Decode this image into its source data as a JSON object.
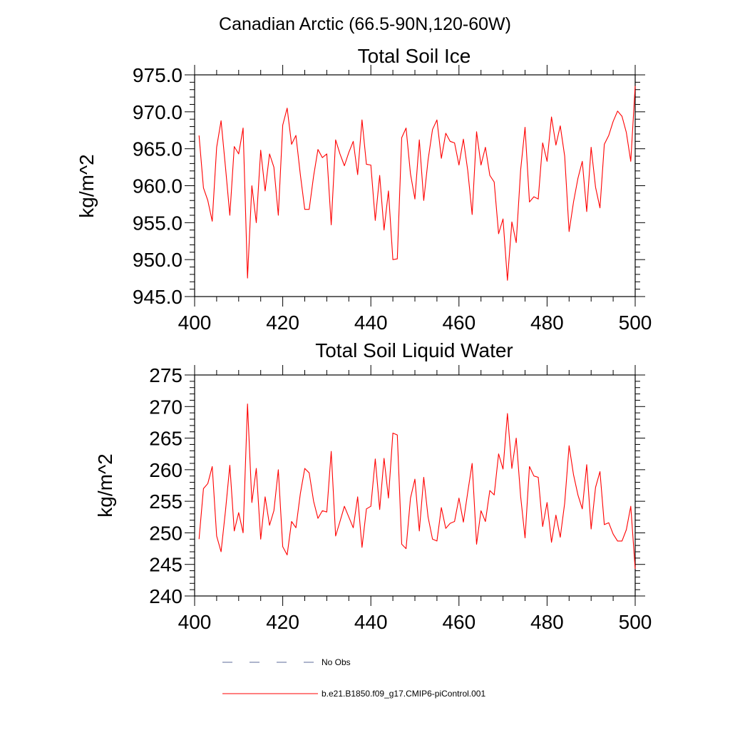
{
  "figure": {
    "suptitle": "Canadian Arctic (66.5-90N,120-60W)"
  },
  "legend": {
    "entries": [
      {
        "label": "No Obs",
        "color": "#5b6a9a",
        "style": "dashed"
      },
      {
        "label": "b.e21.B1850.f09_g17.CMIP6-piControl.001",
        "color": "#ff0000",
        "style": "solid"
      }
    ]
  },
  "chart_data": [
    {
      "type": "line",
      "title": "Total Soil Ice",
      "xlabel": "",
      "ylabel": "kg/m^2",
      "xlim": [
        400,
        500
      ],
      "ylim": [
        945,
        975
      ],
      "xticks": [
        400,
        420,
        440,
        460,
        480,
        500
      ],
      "xtick_labels": [
        "400",
        "420",
        "440",
        "460",
        "480",
        "500"
      ],
      "yticks": [
        945,
        950,
        955,
        960,
        965,
        970,
        975
      ],
      "ytick_labels": [
        "945.0",
        "950.0",
        "955.0",
        "960.0",
        "965.0",
        "970.0",
        "975.0"
      ],
      "grid": false,
      "series": [
        {
          "name": "b.e21.B1850.f09_g17.CMIP6-piControl.001",
          "color": "#ff0000",
          "x": [
            401,
            402,
            403,
            404,
            405,
            406,
            407,
            408,
            409,
            410,
            411,
            412,
            413,
            414,
            415,
            416,
            417,
            418,
            419,
            420,
            421,
            422,
            423,
            424,
            425,
            426,
            427,
            428,
            429,
            430,
            431,
            432,
            433,
            434,
            435,
            436,
            437,
            438,
            439,
            440,
            441,
            442,
            443,
            444,
            445,
            446,
            447,
            448,
            449,
            450,
            451,
            452,
            453,
            454,
            455,
            456,
            457,
            458,
            459,
            460,
            461,
            462,
            463,
            464,
            465,
            466,
            467,
            468,
            469,
            470,
            471,
            472,
            473,
            474,
            475,
            476,
            477,
            478,
            479,
            480,
            481,
            482,
            483,
            484,
            485,
            486,
            487,
            488,
            489,
            490,
            491,
            492,
            493,
            494,
            495,
            496,
            497,
            498,
            499,
            500
          ],
          "values": [
            966.8,
            959.7,
            958.0,
            955.2,
            965.2,
            968.8,
            962.5,
            956.0,
            965.3,
            964.3,
            967.8,
            947.5,
            960.0,
            955.0,
            964.8,
            959.3,
            964.3,
            962.5,
            956.0,
            968.2,
            970.5,
            965.6,
            966.8,
            961.5,
            956.8,
            956.8,
            961.3,
            964.9,
            963.8,
            964.3,
            954.7,
            966.2,
            964.3,
            962.7,
            964.5,
            966.0,
            961.5,
            968.9,
            962.9,
            962.8,
            955.3,
            961.4,
            954.0,
            959.3,
            950.0,
            950.1,
            966.5,
            967.8,
            961.6,
            958.2,
            966.2,
            958.0,
            963.5,
            967.6,
            968.9,
            963.7,
            967.1,
            966.0,
            965.8,
            962.8,
            966.3,
            962.0,
            956.1,
            967.3,
            962.8,
            965.2,
            961.4,
            960.5,
            953.5,
            955.5,
            947.2,
            955.1,
            952.3,
            962.1,
            967.9,
            957.8,
            958.5,
            958.2,
            965.8,
            963.3,
            969.3,
            965.5,
            968.1,
            964.0,
            953.8,
            957.8,
            961.0,
            963.3,
            956.5,
            965.2,
            959.8,
            957.0,
            965.6,
            966.8,
            968.7,
            970.1,
            969.4,
            967.2,
            963.3,
            973.5
          ]
        }
      ]
    },
    {
      "type": "line",
      "title": "Total Soil Liquid Water",
      "xlabel": "",
      "ylabel": "kg/m^2",
      "xlim": [
        400,
        500
      ],
      "ylim": [
        240,
        275
      ],
      "xticks": [
        400,
        420,
        440,
        460,
        480,
        500
      ],
      "xtick_labels": [
        "400",
        "420",
        "440",
        "460",
        "480",
        "500"
      ],
      "yticks": [
        240,
        245,
        250,
        255,
        260,
        265,
        270,
        275
      ],
      "ytick_labels": [
        "240",
        "245",
        "250",
        "255",
        "260",
        "265",
        "270",
        "275"
      ],
      "grid": false,
      "series": [
        {
          "name": "b.e21.B1850.f09_g17.CMIP6-piControl.001",
          "color": "#ff0000",
          "x": [
            401,
            402,
            403,
            404,
            405,
            406,
            407,
            408,
            409,
            410,
            411,
            412,
            413,
            414,
            415,
            416,
            417,
            418,
            419,
            420,
            421,
            422,
            423,
            424,
            425,
            426,
            427,
            428,
            429,
            430,
            431,
            432,
            433,
            434,
            435,
            436,
            437,
            438,
            439,
            440,
            441,
            442,
            443,
            444,
            445,
            446,
            447,
            448,
            449,
            450,
            451,
            452,
            453,
            454,
            455,
            456,
            457,
            458,
            459,
            460,
            461,
            462,
            463,
            464,
            465,
            466,
            467,
            468,
            469,
            470,
            471,
            472,
            473,
            474,
            475,
            476,
            477,
            478,
            479,
            480,
            481,
            482,
            483,
            484,
            485,
            486,
            487,
            488,
            489,
            490,
            491,
            492,
            493,
            494,
            495,
            496,
            497,
            498,
            499,
            500
          ],
          "values": [
            249.0,
            257.0,
            257.8,
            260.5,
            249.5,
            247.0,
            253.5,
            260.7,
            250.3,
            253.2,
            250.0,
            270.4,
            254.8,
            260.2,
            249.0,
            255.7,
            251.2,
            253.5,
            260.0,
            247.8,
            246.5,
            251.8,
            250.8,
            256.2,
            260.2,
            259.5,
            255.0,
            252.3,
            253.5,
            253.3,
            262.9,
            249.5,
            251.8,
            254.2,
            252.5,
            250.8,
            255.7,
            247.7,
            253.8,
            254.2,
            261.7,
            253.7,
            261.8,
            255.5,
            265.8,
            265.5,
            248.2,
            247.5,
            255.5,
            258.5,
            250.3,
            258.8,
            252.5,
            249.0,
            248.7,
            254.0,
            250.7,
            251.5,
            251.8,
            255.5,
            251.7,
            256.5,
            261.0,
            248.2,
            253.5,
            251.8,
            256.7,
            256.0,
            262.5,
            260.1,
            268.9,
            260.2,
            265.0,
            255.8,
            249.2,
            260.5,
            259.0,
            258.8,
            251.0,
            254.8,
            248.5,
            252.8,
            249.3,
            254.7,
            263.8,
            259.2,
            256.0,
            253.8,
            260.8,
            250.6,
            257.2,
            259.7,
            251.3,
            251.6,
            249.8,
            248.7,
            248.7,
            250.5,
            254.2,
            244.3
          ]
        }
      ]
    }
  ]
}
